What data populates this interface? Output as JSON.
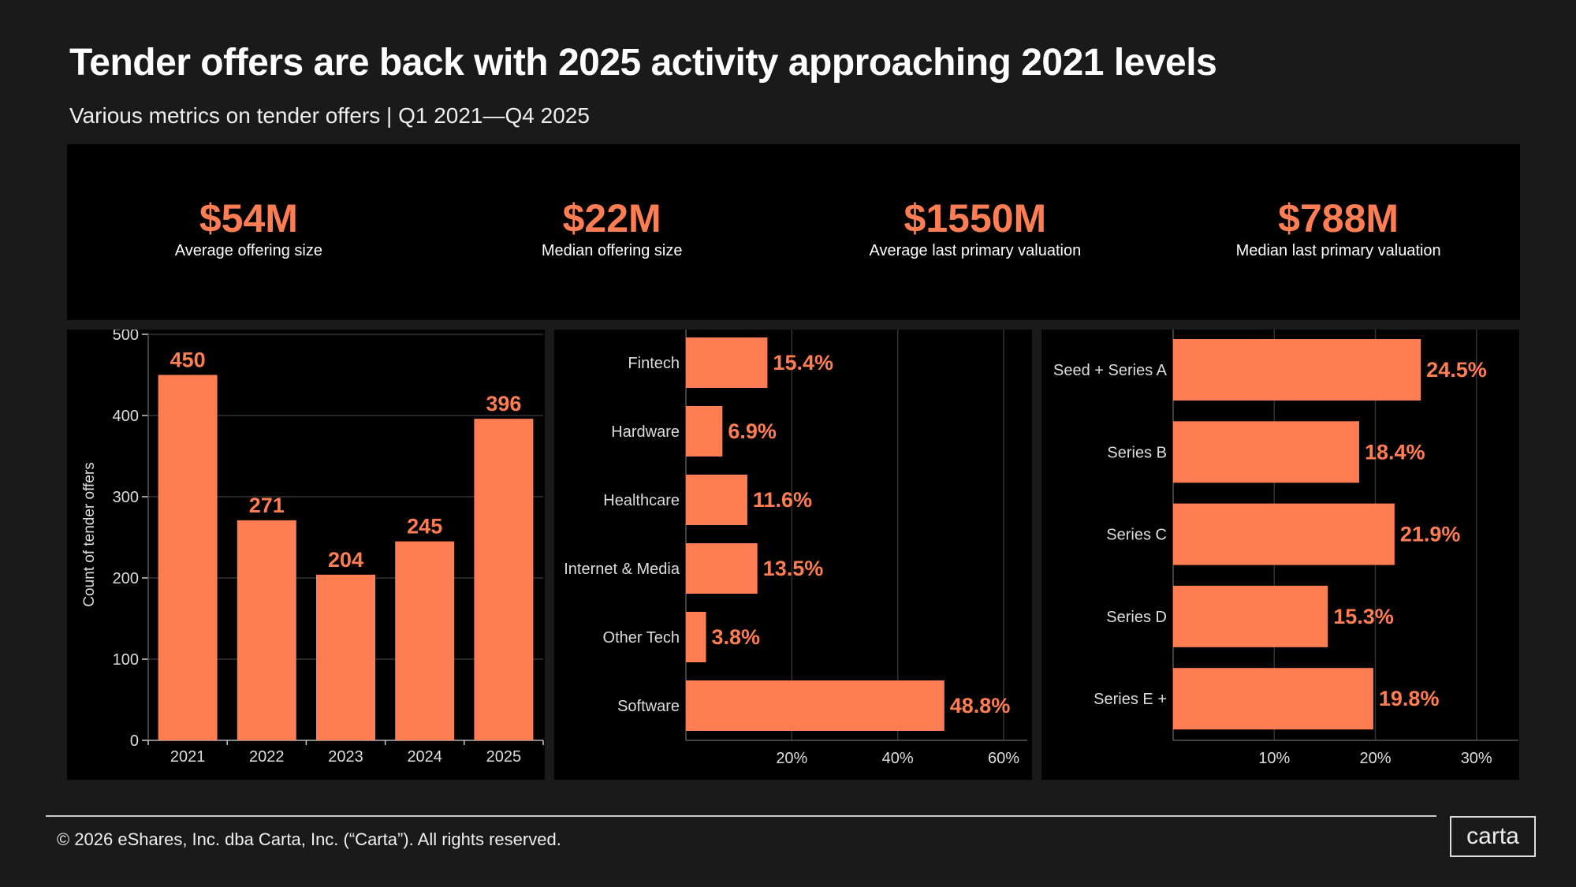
{
  "header": {
    "title": "Tender offers are back with 2025 activity approaching 2021 levels",
    "subtitle": "Various metrics on tender offers | Q1 2021—Q4 2025"
  },
  "kpis": [
    {
      "value": "$54M",
      "label": "Average offering size"
    },
    {
      "value": "$22M",
      "label": "Median offering size"
    },
    {
      "value": "$1550M",
      "label": "Average last primary valuation"
    },
    {
      "value": "$788M",
      "label": "Median last primary valuation"
    }
  ],
  "colors": {
    "bar": "#ff7d52",
    "background": "#1a1a1a",
    "panel": "#000000",
    "grid": "#333333"
  },
  "chart_data": [
    {
      "type": "bar",
      "orientation": "vertical",
      "categories": [
        "2021",
        "2022",
        "2023",
        "2024",
        "2025"
      ],
      "values": [
        450,
        271,
        204,
        245,
        396
      ],
      "data_labels": [
        "450",
        "271",
        "204",
        "245",
        "396"
      ],
      "ylabel": "Count of tender offers",
      "ylim": [
        0,
        500
      ],
      "yticks": [
        "0",
        "100",
        "200",
        "300",
        "400",
        "500"
      ],
      "grid": true
    },
    {
      "type": "bar",
      "orientation": "horizontal",
      "categories": [
        "Fintech",
        "Hardware",
        "Healthcare",
        "Internet & Media",
        "Other Tech",
        "Software"
      ],
      "values": [
        15.4,
        6.9,
        11.6,
        13.5,
        3.8,
        48.8
      ],
      "data_labels": [
        "15.4%",
        "6.9%",
        "11.6%",
        "13.5%",
        "3.8%",
        "48.8%"
      ],
      "xlim": [
        0,
        60
      ],
      "xticks": [
        {
          "v": 20,
          "label": "20%"
        },
        {
          "v": 40,
          "label": "40%"
        },
        {
          "v": 60,
          "label": "60%"
        }
      ],
      "grid": true
    },
    {
      "type": "bar",
      "orientation": "horizontal",
      "categories": [
        "Seed + Series A",
        "Series B",
        "Series C",
        "Series D",
        "Series E +"
      ],
      "values": [
        24.5,
        18.4,
        21.9,
        15.3,
        19.8
      ],
      "data_labels": [
        "24.5%",
        "18.4%",
        "21.9%",
        "15.3%",
        "19.8%"
      ],
      "xlim": [
        0,
        34
      ],
      "xticks": [
        {
          "v": 10,
          "label": "10%"
        },
        {
          "v": 20,
          "label": "20%"
        },
        {
          "v": 30,
          "label": "30%"
        }
      ],
      "grid": true
    }
  ],
  "footer": {
    "copyright": "© 2026 eShares, Inc. dba Carta, Inc. (“Carta”). All rights reserved.",
    "logo": "carta"
  }
}
